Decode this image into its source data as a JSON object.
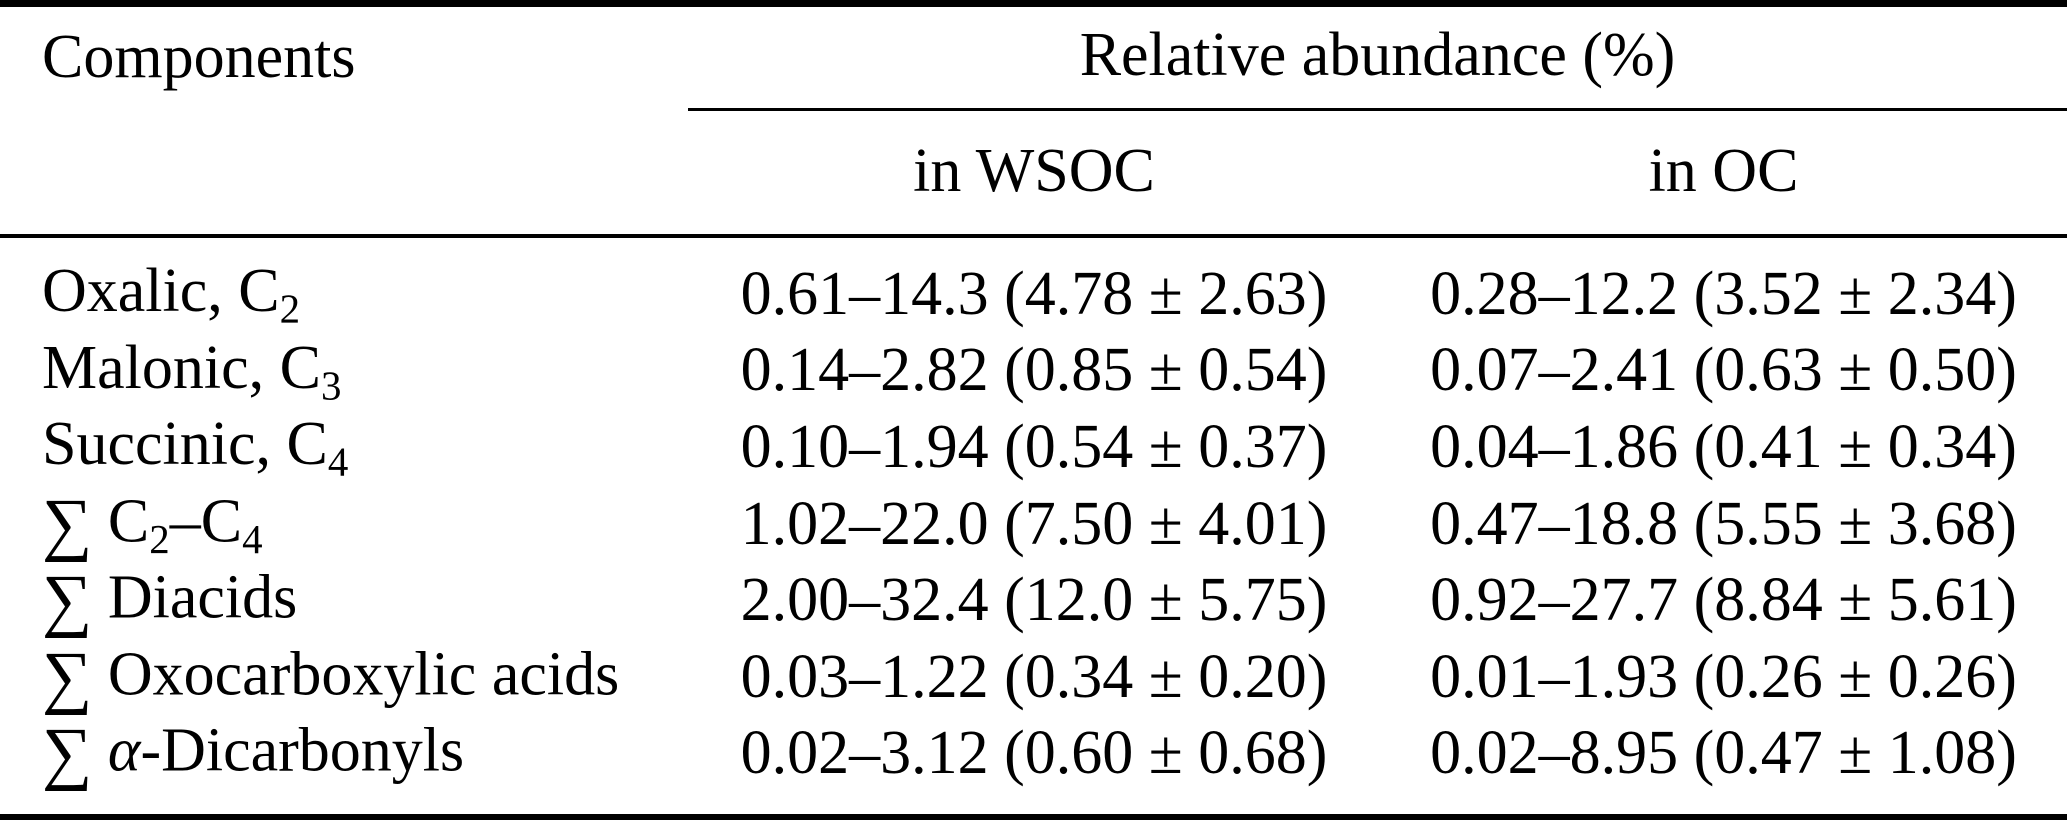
{
  "page": {
    "background_color": "#ffffff",
    "text_color": "#000000",
    "rule_color": "#000000"
  },
  "table": {
    "columns": {
      "col1_header": "Components",
      "group_header": "Relative abundance (%)",
      "sub_headers": [
        "in WSOC",
        "in OC"
      ]
    },
    "rows": [
      {
        "component": [
          {
            "t": "Oxalic, C"
          },
          {
            "t": "2",
            "style": "sub"
          }
        ],
        "in_wsoc": "0.61–14.3 (4.78 ± 2.63)",
        "in_oc": "0.28–12.2 (3.52 ± 2.34)"
      },
      {
        "component": [
          {
            "t": "Malonic, C"
          },
          {
            "t": "3",
            "style": "sub"
          }
        ],
        "in_wsoc": "0.14–2.82 (0.85 ± 0.54)",
        "in_oc": "0.07–2.41 (0.63 ± 0.50)"
      },
      {
        "component": [
          {
            "t": "Succinic, C"
          },
          {
            "t": "4",
            "style": "sub"
          }
        ],
        "in_wsoc": "0.10–1.94 (0.54 ± 0.37)",
        "in_oc": "0.04–1.86 (0.41 ± 0.34)"
      },
      {
        "component": [
          {
            "t": "∑",
            "style": "sum"
          },
          {
            "t": " C"
          },
          {
            "t": "2",
            "style": "sub"
          },
          {
            "t": "–C"
          },
          {
            "t": "4",
            "style": "sub"
          }
        ],
        "in_wsoc": "1.02–22.0 (7.50 ± 4.01)",
        "in_oc": "0.47–18.8 (5.55 ± 3.68)"
      },
      {
        "component": [
          {
            "t": "∑",
            "style": "sum"
          },
          {
            "t": " Diacids"
          }
        ],
        "in_wsoc": "2.00–32.4 (12.0 ± 5.75)",
        "in_oc": "0.92–27.7 (8.84 ± 5.61)"
      },
      {
        "component": [
          {
            "t": "∑",
            "style": "sum"
          },
          {
            "t": " Oxocarboxylic acids"
          }
        ],
        "in_wsoc": "0.03–1.22 (0.34 ± 0.20)",
        "in_oc": "0.01–1.93 (0.26 ± 0.26)"
      },
      {
        "component": [
          {
            "t": "∑",
            "style": "sum"
          },
          {
            "t": " "
          },
          {
            "t": "α",
            "style": "italic"
          },
          {
            "t": "-Dicarbonyls"
          }
        ],
        "in_wsoc": "0.02–3.12 (0.60 ± 0.68)",
        "in_oc": "0.02–8.95 (0.47 ± 1.08)"
      }
    ]
  }
}
